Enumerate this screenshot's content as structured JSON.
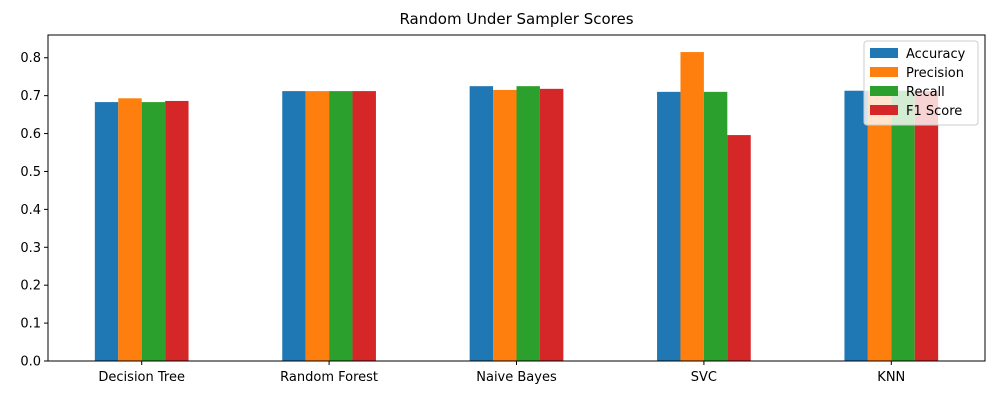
{
  "chart_data": {
    "type": "bar",
    "title": "Random Under Sampler Scores",
    "xlabel": "",
    "ylabel": "",
    "categories": [
      "Decision Tree",
      "Random Forest",
      "Naive Bayes",
      "SVC",
      "KNN"
    ],
    "series": [
      {
        "name": "Accuracy",
        "color": "#1f77b4",
        "values": [
          0.683,
          0.712,
          0.725,
          0.71,
          0.713
        ]
      },
      {
        "name": "Precision",
        "color": "#ff7f0e",
        "values": [
          0.693,
          0.712,
          0.715,
          0.815,
          0.713
        ]
      },
      {
        "name": "Recall",
        "color": "#2ca02c",
        "values": [
          0.683,
          0.712,
          0.725,
          0.71,
          0.713
        ]
      },
      {
        "name": "F1 Score",
        "color": "#d62728",
        "values": [
          0.686,
          0.712,
          0.718,
          0.596,
          0.712
        ]
      }
    ],
    "ylim": [
      0,
      0.86
    ],
    "yticks": [
      "0.0",
      "0.1",
      "0.2",
      "0.3",
      "0.4",
      "0.5",
      "0.6",
      "0.7",
      "0.8"
    ],
    "grid": false,
    "legend_position": "top-right"
  }
}
